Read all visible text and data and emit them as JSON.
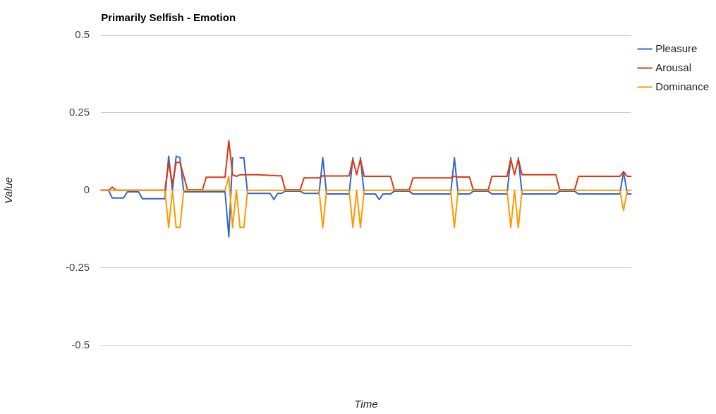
{
  "chart_data": {
    "type": "line",
    "title": "Primarily Selfish - Emotion",
    "xlabel": "Time",
    "ylabel": "Value",
    "categories": [
      null,
      null,
      null,
      null,
      null,
      null,
      null,
      null,
      null,
      null,
      null,
      null,
      null,
      null,
      null,
      null,
      null,
      null,
      null,
      null,
      null,
      null,
      null,
      null,
      null,
      null,
      null,
      null,
      null,
      null,
      null,
      null,
      null,
      null,
      null,
      null,
      null,
      null,
      null,
      null,
      null,
      null,
      null,
      null,
      null,
      null,
      null,
      null,
      null,
      null,
      null,
      null,
      null,
      null,
      null,
      null,
      null,
      null,
      null,
      null,
      null,
      null,
      null,
      null,
      null,
      null,
      null,
      null,
      null,
      null,
      null,
      null,
      null,
      null,
      null,
      null,
      null,
      null,
      null,
      null,
      null,
      null,
      null,
      null,
      null,
      null,
      null,
      null,
      null,
      null,
      null,
      null,
      null,
      null,
      null,
      null,
      null,
      null,
      null,
      null,
      null,
      null,
      null,
      null,
      null,
      null,
      null,
      null,
      null,
      null,
      null,
      null,
      null,
      null,
      null,
      null,
      null,
      null,
      null,
      null,
      null,
      null,
      null,
      null,
      null,
      null,
      null,
      null,
      null,
      null,
      null,
      null,
      null,
      null,
      null,
      null,
      null,
      null,
      null,
      null,
      null,
      null
    ],
    "series": [
      {
        "name": "Pleasure",
        "color": "#3366cc",
        "values": [
          0,
          0,
          0,
          -0.025,
          -0.025,
          -0.025,
          -0.025,
          -0.005,
          -0.005,
          -0.005,
          -0.005,
          -0.027,
          -0.027,
          -0.027,
          -0.027,
          -0.027,
          -0.027,
          -0.027,
          0.11,
          0,
          0.11,
          0.105,
          -0.005,
          -0.005,
          -0.005,
          -0.005,
          -0.005,
          -0.005,
          -0.005,
          -0.005,
          -0.005,
          -0.005,
          -0.005,
          -0.005,
          -0.15,
          0.105,
          null,
          0.105,
          0.105,
          -0.01,
          -0.01,
          -0.01,
          -0.01,
          -0.01,
          -0.01,
          -0.01,
          -0.03,
          -0.01,
          -0.01,
          -0.003,
          -0.003,
          -0.003,
          -0.003,
          -0.003,
          -0.01,
          -0.01,
          -0.01,
          -0.01,
          -0.01,
          0.105,
          -0.012,
          -0.012,
          -0.012,
          -0.012,
          -0.012,
          -0.012,
          -0.012,
          0.105,
          null,
          0.105,
          -0.012,
          -0.012,
          -0.012,
          -0.012,
          -0.03,
          -0.012,
          -0.012,
          -0.012,
          -0.003,
          -0.003,
          -0.003,
          -0.003,
          -0.003,
          -0.012,
          -0.012,
          -0.012,
          -0.012,
          -0.012,
          -0.012,
          -0.012,
          -0.012,
          -0.012,
          -0.012,
          -0.012,
          0.105,
          -0.012,
          -0.012,
          -0.012,
          -0.012,
          -0.003,
          -0.003,
          -0.003,
          -0.003,
          -0.003,
          -0.012,
          -0.012,
          -0.012,
          -0.012,
          -0.012,
          0.105,
          null,
          0.105,
          -0.012,
          -0.012,
          -0.012,
          -0.012,
          -0.012,
          -0.012,
          -0.012,
          -0.012,
          -0.012,
          -0.012,
          -0.003,
          -0.003,
          -0.003,
          -0.003,
          -0.003,
          -0.012,
          -0.012,
          -0.012,
          -0.012,
          -0.012,
          -0.012,
          -0.012,
          -0.012,
          -0.012,
          -0.012,
          -0.012,
          -0.012,
          0.06,
          -0.012,
          -0.012
        ]
      },
      {
        "name": "Arousal",
        "color": "#dc3912",
        "values": [
          0,
          0,
          0,
          0.01,
          0,
          0,
          0,
          0,
          0,
          0,
          0,
          0,
          0,
          0,
          0,
          0,
          0,
          0,
          0.09,
          0.02,
          0.09,
          0.09,
          0.046,
          0.002,
          0.002,
          0.002,
          0.002,
          0.002,
          0.042,
          0.042,
          0.042,
          0.042,
          0.042,
          0.042,
          0.16,
          0.05,
          0.045,
          0.05,
          0.05,
          0.05,
          0.05,
          0.05,
          0.05,
          0.049,
          0.049,
          0.048,
          0.048,
          0.047,
          0.047,
          0.002,
          0.002,
          0.002,
          0.002,
          0.002,
          0.04,
          0.04,
          0.04,
          0.04,
          0.04,
          0.047,
          0.046,
          0.046,
          0.046,
          0.046,
          0.046,
          0.046,
          0.046,
          0.1,
          0.05,
          0.1,
          0.045,
          0.045,
          0.045,
          0.045,
          0.045,
          0.045,
          0.045,
          0.045,
          0.002,
          0.002,
          0.002,
          0.002,
          0.002,
          0.04,
          0.04,
          0.04,
          0.04,
          0.04,
          0.04,
          0.04,
          0.04,
          0.04,
          0.04,
          0.04,
          0.045,
          0.043,
          0.043,
          0.043,
          0.043,
          0.002,
          0.002,
          0.002,
          0.002,
          0.002,
          0.045,
          0.045,
          0.045,
          0.045,
          0.045,
          0.1,
          0.05,
          0.1,
          0.05,
          0.05,
          0.05,
          0.05,
          0.05,
          0.05,
          0.05,
          0.05,
          0.05,
          0.05,
          0.002,
          0.002,
          0.002,
          0.002,
          0.002,
          0.045,
          0.045,
          0.045,
          0.045,
          0.045,
          0.045,
          0.045,
          0.045,
          0.045,
          0.045,
          0.045,
          0.045,
          0.06,
          0.045,
          0.045
        ]
      },
      {
        "name": "Dominance",
        "color": "#ff9900",
        "values": [
          0,
          0,
          0,
          0,
          0,
          0,
          0,
          0,
          0,
          0,
          0,
          0,
          0,
          0,
          0,
          0,
          0,
          0,
          -0.12,
          0,
          -0.12,
          -0.12,
          0,
          0,
          0,
          0,
          0,
          0,
          0,
          0,
          0,
          0,
          0,
          0,
          0.045,
          -0.12,
          0,
          -0.12,
          -0.12,
          0,
          0,
          0,
          0,
          0,
          0,
          0,
          0,
          0,
          0,
          0,
          0,
          0,
          0,
          0,
          0,
          0,
          0,
          0,
          0,
          -0.12,
          0,
          0,
          0,
          0,
          0,
          0,
          0,
          -0.12,
          0,
          -0.12,
          0,
          0,
          0,
          0,
          0,
          0,
          0,
          0,
          0,
          0,
          0,
          0,
          0,
          0,
          0,
          0,
          0,
          0,
          0,
          0,
          0,
          0,
          0,
          0,
          -0.12,
          0,
          0,
          0,
          0,
          0,
          0,
          0,
          0,
          0,
          0,
          0,
          0,
          0,
          0,
          -0.12,
          0,
          -0.12,
          0,
          0,
          0,
          0,
          0,
          0,
          0,
          0,
          0,
          0,
          0,
          0,
          0,
          0,
          0,
          0,
          0,
          0,
          0,
          0,
          0,
          0,
          0,
          0,
          0,
          0,
          0,
          -0.065,
          0,
          0
        ]
      }
    ],
    "ylim": [
      -0.5,
      0.5
    ],
    "yticks": [
      -0.5,
      -0.25,
      0,
      0.25,
      0.5
    ],
    "grid": "y",
    "legend": "top right",
    "marker": "none",
    "line_style": "solid"
  }
}
